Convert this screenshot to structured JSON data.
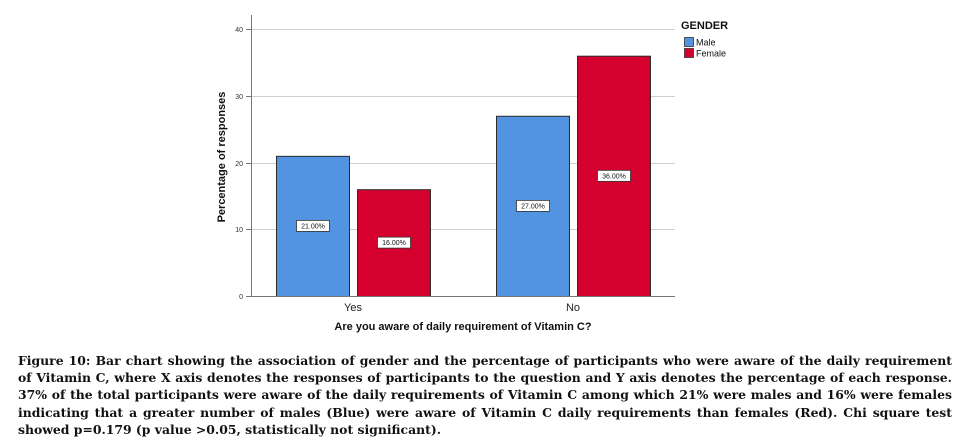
{
  "chart_data": {
    "type": "bar",
    "title": "",
    "xlabel": "Are you aware of daily requirement of Vitamin C?",
    "ylabel": "Percentage of responses",
    "categories": [
      "Yes",
      "No"
    ],
    "series": [
      {
        "name": "Male",
        "color": "#5294e2",
        "values": [
          21,
          27
        ],
        "labels": [
          "21.00%",
          "27.00%"
        ]
      },
      {
        "name": "Female",
        "color": "#d6002f",
        "values": [
          16,
          36
        ],
        "labels": [
          "16.00%",
          "36.00%"
        ]
      }
    ],
    "ylim": [
      0,
      40
    ],
    "yticks": [
      0,
      10,
      20,
      30,
      40
    ],
    "grid": true,
    "legend": {
      "title": "GENDER",
      "position": "top-right"
    }
  },
  "caption": "Figure 10: Bar chart showing the association of gender and the percentage of participants who were aware of the daily requirement of Vitamin C, where X axis denotes the responses of participants to the question and Y axis denotes the percentage of each response. 37% of the total participants were aware of the daily requirements of Vitamin C among which 21% were males and 16% were females indicating that a greater number of males (Blue) were aware of Vitamin C daily requirements than females (Red). Chi square test showed p=0.179 (p value >0.05, statistically not significant)."
}
